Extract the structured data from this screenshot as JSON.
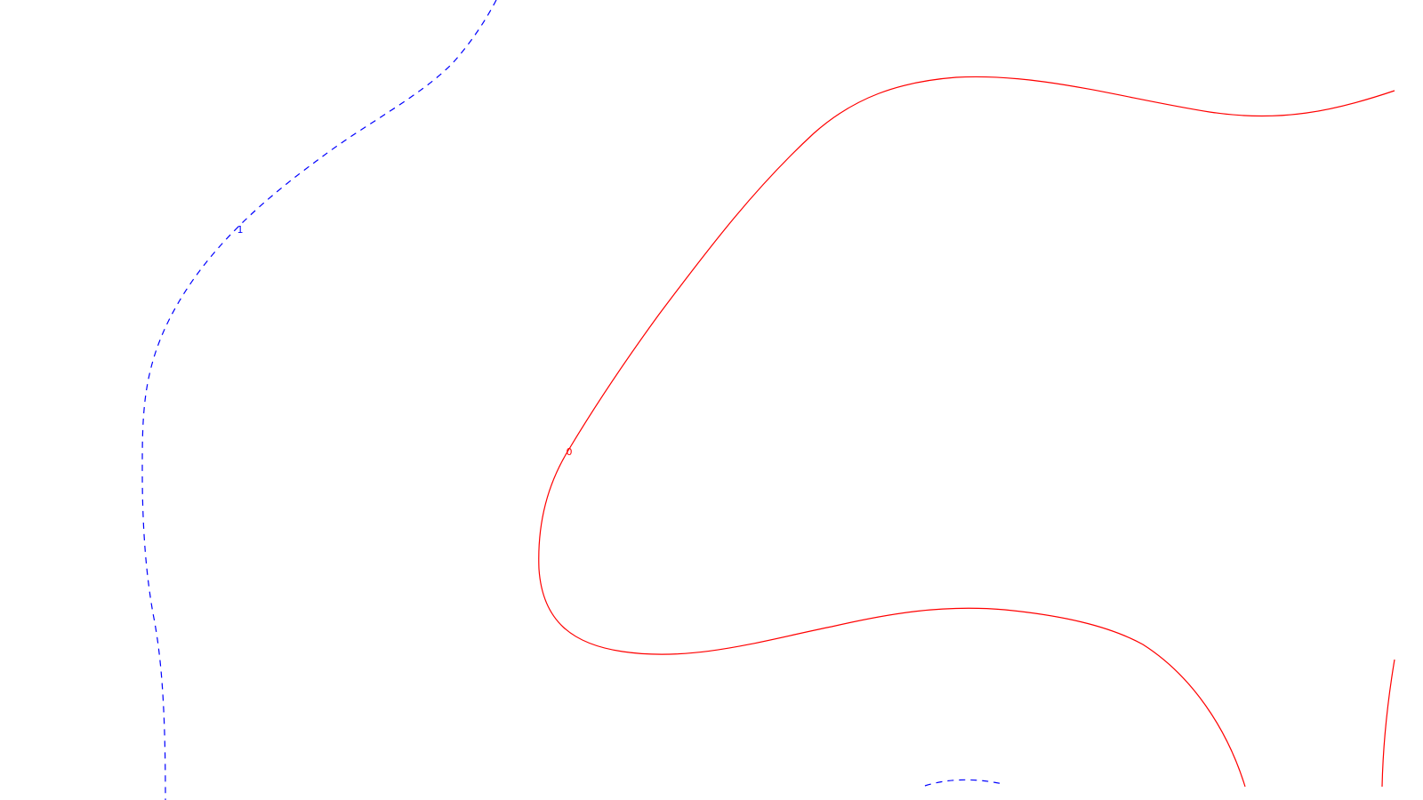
{
  "chart_data": {
    "type": "contour",
    "title": "",
    "xlabel": "",
    "ylabel": "",
    "grid": false,
    "legend": "none",
    "levels": [
      {
        "label": "1",
        "value": 1,
        "color": "#0000ff",
        "style": "dashed"
      },
      {
        "label": "0",
        "value": 0,
        "color": "#ff0000",
        "style": "solid"
      }
    ]
  }
}
